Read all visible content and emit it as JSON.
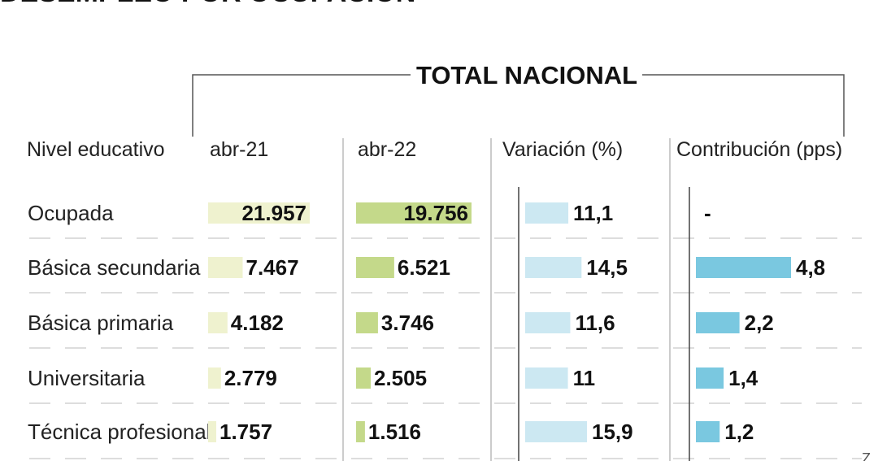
{
  "title": "DESEMPLEO POR OCUPACIÓN",
  "group_label": "TOTAL NACIONAL",
  "row_header": "Nivel educativo",
  "corner_mark": "Z",
  "colors": {
    "abr21": "#eff2cf",
    "abr22": "#c4d98a",
    "variacion": "#cce8f2",
    "contribucion": "#7ac8e0",
    "text": "#111111",
    "rule": "#888888"
  },
  "chart_data": {
    "type": "bar",
    "title": "DESEMPLEO POR OCUPACIÓN",
    "categories": [
      "Ocupada",
      "Básica secundaria",
      "Básica primaria",
      "Universitaria",
      "Técnica profesional"
    ],
    "series": [
      {
        "key": "abr21",
        "name": "abr-21",
        "values": [
          21957,
          7467,
          4182,
          2779,
          1757
        ],
        "labels": [
          "21.957",
          "7.467",
          "4.182",
          "2.779",
          "1.757"
        ]
      },
      {
        "key": "abr22",
        "name": "abr-22",
        "values": [
          19756,
          6521,
          3746,
          2505,
          1516
        ],
        "labels": [
          "19.756",
          "6.521",
          "3.746",
          "2.505",
          "1.516"
        ]
      },
      {
        "key": "variacion",
        "name": "Variación (%)",
        "values": [
          11.1,
          14.5,
          11.6,
          11,
          15.9
        ],
        "labels": [
          "11,1",
          "14,5",
          "11,6",
          "11",
          "15,9"
        ]
      },
      {
        "key": "contribucion",
        "name": "Contribución (pps)",
        "values": [
          null,
          4.8,
          2.2,
          1.4,
          1.2
        ],
        "labels": [
          "-",
          "4,8",
          "2,2",
          "1,4",
          "1,2"
        ]
      }
    ]
  }
}
